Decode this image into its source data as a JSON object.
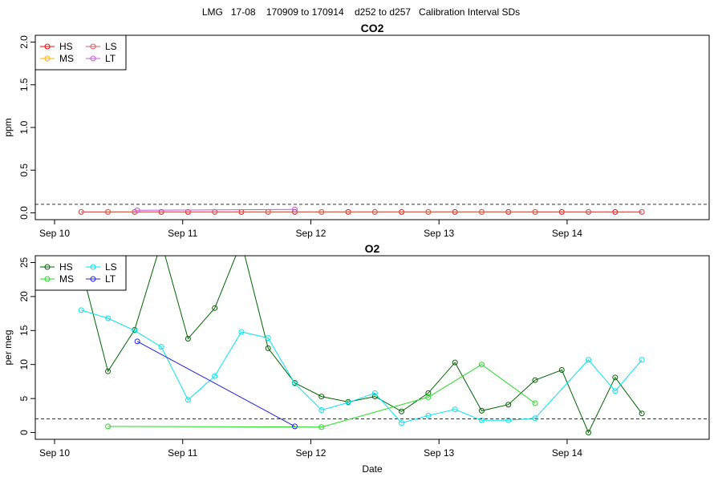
{
  "title": "LMG   17-08    170909 to 170914    d252 to d257   Calibration Interval SDs",
  "chart_data": [
    {
      "type": "line",
      "title": "CO2",
      "xlabel": "",
      "ylabel": "ppm",
      "ylim": [
        0,
        2
      ],
      "yticks": [
        "0.0",
        "0.5",
        "1.0",
        "1.5",
        "2.0"
      ],
      "ytick_values": [
        0,
        0.5,
        1.0,
        1.5,
        2.0
      ],
      "xlim": [
        "2017-09-10T00:00",
        "2017-09-14T23:00"
      ],
      "xticks": [
        "Sep 10",
        "Sep 11",
        "Sep 12",
        "Sep 13",
        "Sep 14"
      ],
      "xtick_values": [
        "2017-09-10T00:00",
        "2017-09-11T00:00",
        "2017-09-12T00:00",
        "2017-09-13T00:00",
        "2017-09-14T00:00"
      ],
      "reference_line": 0.1,
      "grid": false,
      "legend_position": "top-left",
      "series": [
        {
          "name": "HS",
          "color": "#ff0000",
          "x": [
            "2017-09-10T05:00",
            "2017-09-10T10:00",
            "2017-09-10T15:00",
            "2017-09-10T20:00",
            "2017-09-11T01:00",
            "2017-09-11T06:00",
            "2017-09-11T11:00",
            "2017-09-11T16:00",
            "2017-09-11T21:00",
            "2017-09-12T02:00",
            "2017-09-12T07:00",
            "2017-09-12T12:00",
            "2017-09-12T17:00",
            "2017-09-12T22:00",
            "2017-09-13T03:00",
            "2017-09-13T08:00",
            "2017-09-13T13:00",
            "2017-09-13T18:00",
            "2017-09-13T23:00",
            "2017-09-14T04:00",
            "2017-09-14T09:00",
            "2017-09-14T14:00"
          ],
          "y": [
            0.01,
            0.01,
            0.01,
            0.01,
            0.01,
            0.01,
            0.01,
            0.01,
            0.01,
            0.01,
            0.01,
            0.01,
            0.01,
            0.01,
            0.01,
            0.01,
            0.01,
            0.01,
            0.01,
            0.01,
            0.01,
            0.01
          ]
        },
        {
          "name": "MS",
          "color": "#ffb000",
          "x": [
            "2017-09-10T10:00",
            "2017-09-12T02:00",
            "2017-09-12T22:00",
            "2017-09-13T08:00",
            "2017-09-13T18:00"
          ],
          "y": [
            0.01,
            0.01,
            0.01,
            0.01,
            0.01
          ]
        },
        {
          "name": "LS",
          "color": "#cd5c5c",
          "x": [
            "2017-09-10T05:00",
            "2017-09-10T10:00",
            "2017-09-10T15:00",
            "2017-09-11T06:00",
            "2017-09-11T16:00",
            "2017-09-12T02:00",
            "2017-09-12T12:00",
            "2017-09-12T22:00",
            "2017-09-13T08:00",
            "2017-09-13T18:00",
            "2017-09-14T04:00",
            "2017-09-14T14:00"
          ],
          "y": [
            0.01,
            0.01,
            0.01,
            0.01,
            0.01,
            0.01,
            0.01,
            0.01,
            0.01,
            0.01,
            0.01,
            0.01
          ]
        },
        {
          "name": "LT",
          "color": "#cc55dd",
          "x": [
            "2017-09-10T15:30",
            "2017-09-11T21:00"
          ],
          "y": [
            0.03,
            0.04
          ]
        }
      ]
    },
    {
      "type": "line",
      "title": "O2",
      "xlabel": "Date",
      "ylabel": "per meg",
      "ylim": [
        0,
        25
      ],
      "yticks": [
        "0",
        "5",
        "10",
        "15",
        "20",
        "25"
      ],
      "ytick_values": [
        0,
        5,
        10,
        15,
        20,
        25
      ],
      "xlim": [
        "2017-09-10T00:00",
        "2017-09-14T23:00"
      ],
      "xticks": [
        "Sep 10",
        "Sep 11",
        "Sep 12",
        "Sep 13",
        "Sep 14"
      ],
      "xtick_values": [
        "2017-09-10T00:00",
        "2017-09-11T00:00",
        "2017-09-12T00:00",
        "2017-09-13T00:00",
        "2017-09-14T00:00"
      ],
      "reference_line": 2,
      "grid": false,
      "legend_position": "top-left",
      "series": [
        {
          "name": "HS",
          "color": "#006400",
          "x": [
            "2017-09-10T05:00",
            "2017-09-10T10:00",
            "2017-09-10T15:00",
            "2017-09-10T20:00",
            "2017-09-11T01:00",
            "2017-09-11T06:00",
            "2017-09-11T11:00",
            "2017-09-11T16:00",
            "2017-09-11T21:00",
            "2017-09-12T02:00",
            "2017-09-12T07:00",
            "2017-09-12T12:00",
            "2017-09-12T17:00",
            "2017-09-12T22:00",
            "2017-09-13T03:00",
            "2017-09-13T08:00",
            "2017-09-13T13:00",
            "2017-09-13T18:00",
            "2017-09-13T23:00",
            "2017-09-14T04:00",
            "2017-09-14T09:00",
            "2017-09-14T14:00"
          ],
          "y": [
            24.2,
            9.0,
            15.1,
            28.0,
            13.8,
            18.3,
            28.0,
            12.4,
            7.3,
            5.3,
            4.5,
            5.3,
            3.1,
            5.8,
            10.3,
            3.2,
            4.1,
            7.7,
            9.2,
            0.0,
            8.1,
            2.8
          ]
        },
        {
          "name": "MS",
          "color": "#22dd22",
          "x": [
            "2017-09-10T10:00",
            "2017-09-12T02:00",
            "2017-09-12T22:00",
            "2017-09-13T08:00",
            "2017-09-13T18:00"
          ],
          "y": [
            0.9,
            0.8,
            5.2,
            10.0,
            4.3
          ]
        },
        {
          "name": "LS",
          "color": "#00e5ee",
          "x": [
            "2017-09-10T05:00",
            "2017-09-10T10:00",
            "2017-09-10T15:00",
            "2017-09-10T20:00",
            "2017-09-11T01:00",
            "2017-09-11T06:00",
            "2017-09-11T11:00",
            "2017-09-11T16:00",
            "2017-09-11T21:00",
            "2017-09-12T02:00",
            "2017-09-12T07:00",
            "2017-09-12T12:00",
            "2017-09-12T17:00",
            "2017-09-12T22:00",
            "2017-09-13T03:00",
            "2017-09-13T08:00",
            "2017-09-13T13:00",
            "2017-09-13T18:00",
            "2017-09-14T04:00",
            "2017-09-14T09:00",
            "2017-09-14T14:00"
          ],
          "y": [
            18.0,
            16.8,
            15.0,
            12.6,
            4.8,
            8.3,
            14.8,
            13.9,
            7.2,
            3.3,
            4.4,
            5.8,
            1.4,
            2.5,
            3.4,
            1.8,
            1.8,
            2.1,
            10.7,
            6.1,
            10.7
          ]
        },
        {
          "name": "LT",
          "color": "#2222dd",
          "x": [
            "2017-09-10T15:30",
            "2017-09-11T21:00"
          ],
          "y": [
            13.4,
            0.9
          ]
        }
      ]
    }
  ]
}
